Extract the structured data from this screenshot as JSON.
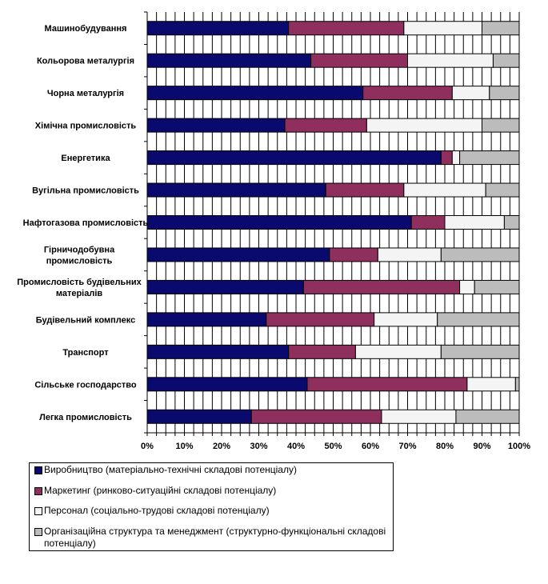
{
  "chart_data": {
    "type": "bar",
    "orientation": "horizontal",
    "stacked": "percent",
    "categories": [
      "Машинобудування",
      "Кольорова металургія",
      "Чорна металургія",
      "Хімічна промисловість",
      "Енергетика",
      "Вугільна промисловість",
      "Нафтогазова промисловість",
      [
        "Гірничодобувна",
        "промисловість"
      ],
      [
        "Промисловість будівельних",
        "матеріалів"
      ],
      "Будівельний комплекс",
      "Транспорт",
      "Сільське господарство",
      "Легка промисловість"
    ],
    "series": [
      {
        "name": "Виробництво (матеріально-технічні складові потенціалу)",
        "color": "#0a0a6e",
        "values": [
          38,
          44,
          58,
          37,
          79,
          48,
          71,
          49,
          42,
          32,
          38,
          43,
          28
        ]
      },
      {
        "name": "Маркетинг (ринково-ситуаційні складові потенціалу)",
        "color": "#8e2f5e",
        "values": [
          31,
          26,
          24,
          22,
          3,
          21,
          9,
          13,
          42,
          29,
          18,
          43,
          35
        ]
      },
      {
        "name": "Персонал (соціально-трудові складові потенціалу)",
        "color": "#f4f4f4",
        "values": [
          21,
          23,
          10,
          31,
          2,
          22,
          16,
          17,
          4,
          17,
          23,
          13,
          20
        ]
      },
      {
        "name": "Організаційна структура та менеджмент (структурно-функціональні складові потенціалу)",
        "color": "#bcbcbc",
        "values": [
          10,
          7,
          8,
          10,
          16,
          9,
          4,
          21,
          12,
          22,
          21,
          1,
          17
        ]
      }
    ],
    "x_ticks": [
      "0%",
      "10%",
      "20%",
      "30%",
      "40%",
      "50%",
      "60%",
      "70%",
      "80%",
      "90%",
      "100%"
    ],
    "xlim": [
      0,
      100
    ],
    "grid": "vertical lines every 2.5%",
    "legend_position": "bottom"
  },
  "legend": {
    "items": [
      [
        "Виробництво (матеріально-технічні складові потенціалу)"
      ],
      [
        "Маркетинг (ринково-ситуаційні складові потенціалу)"
      ],
      [
        "Персонал (соціально-трудові складові потенціалу)"
      ],
      [
        "Організаційна структура та менеджмент (структурно-функціональні складові",
        "потенціалу)"
      ]
    ]
  }
}
